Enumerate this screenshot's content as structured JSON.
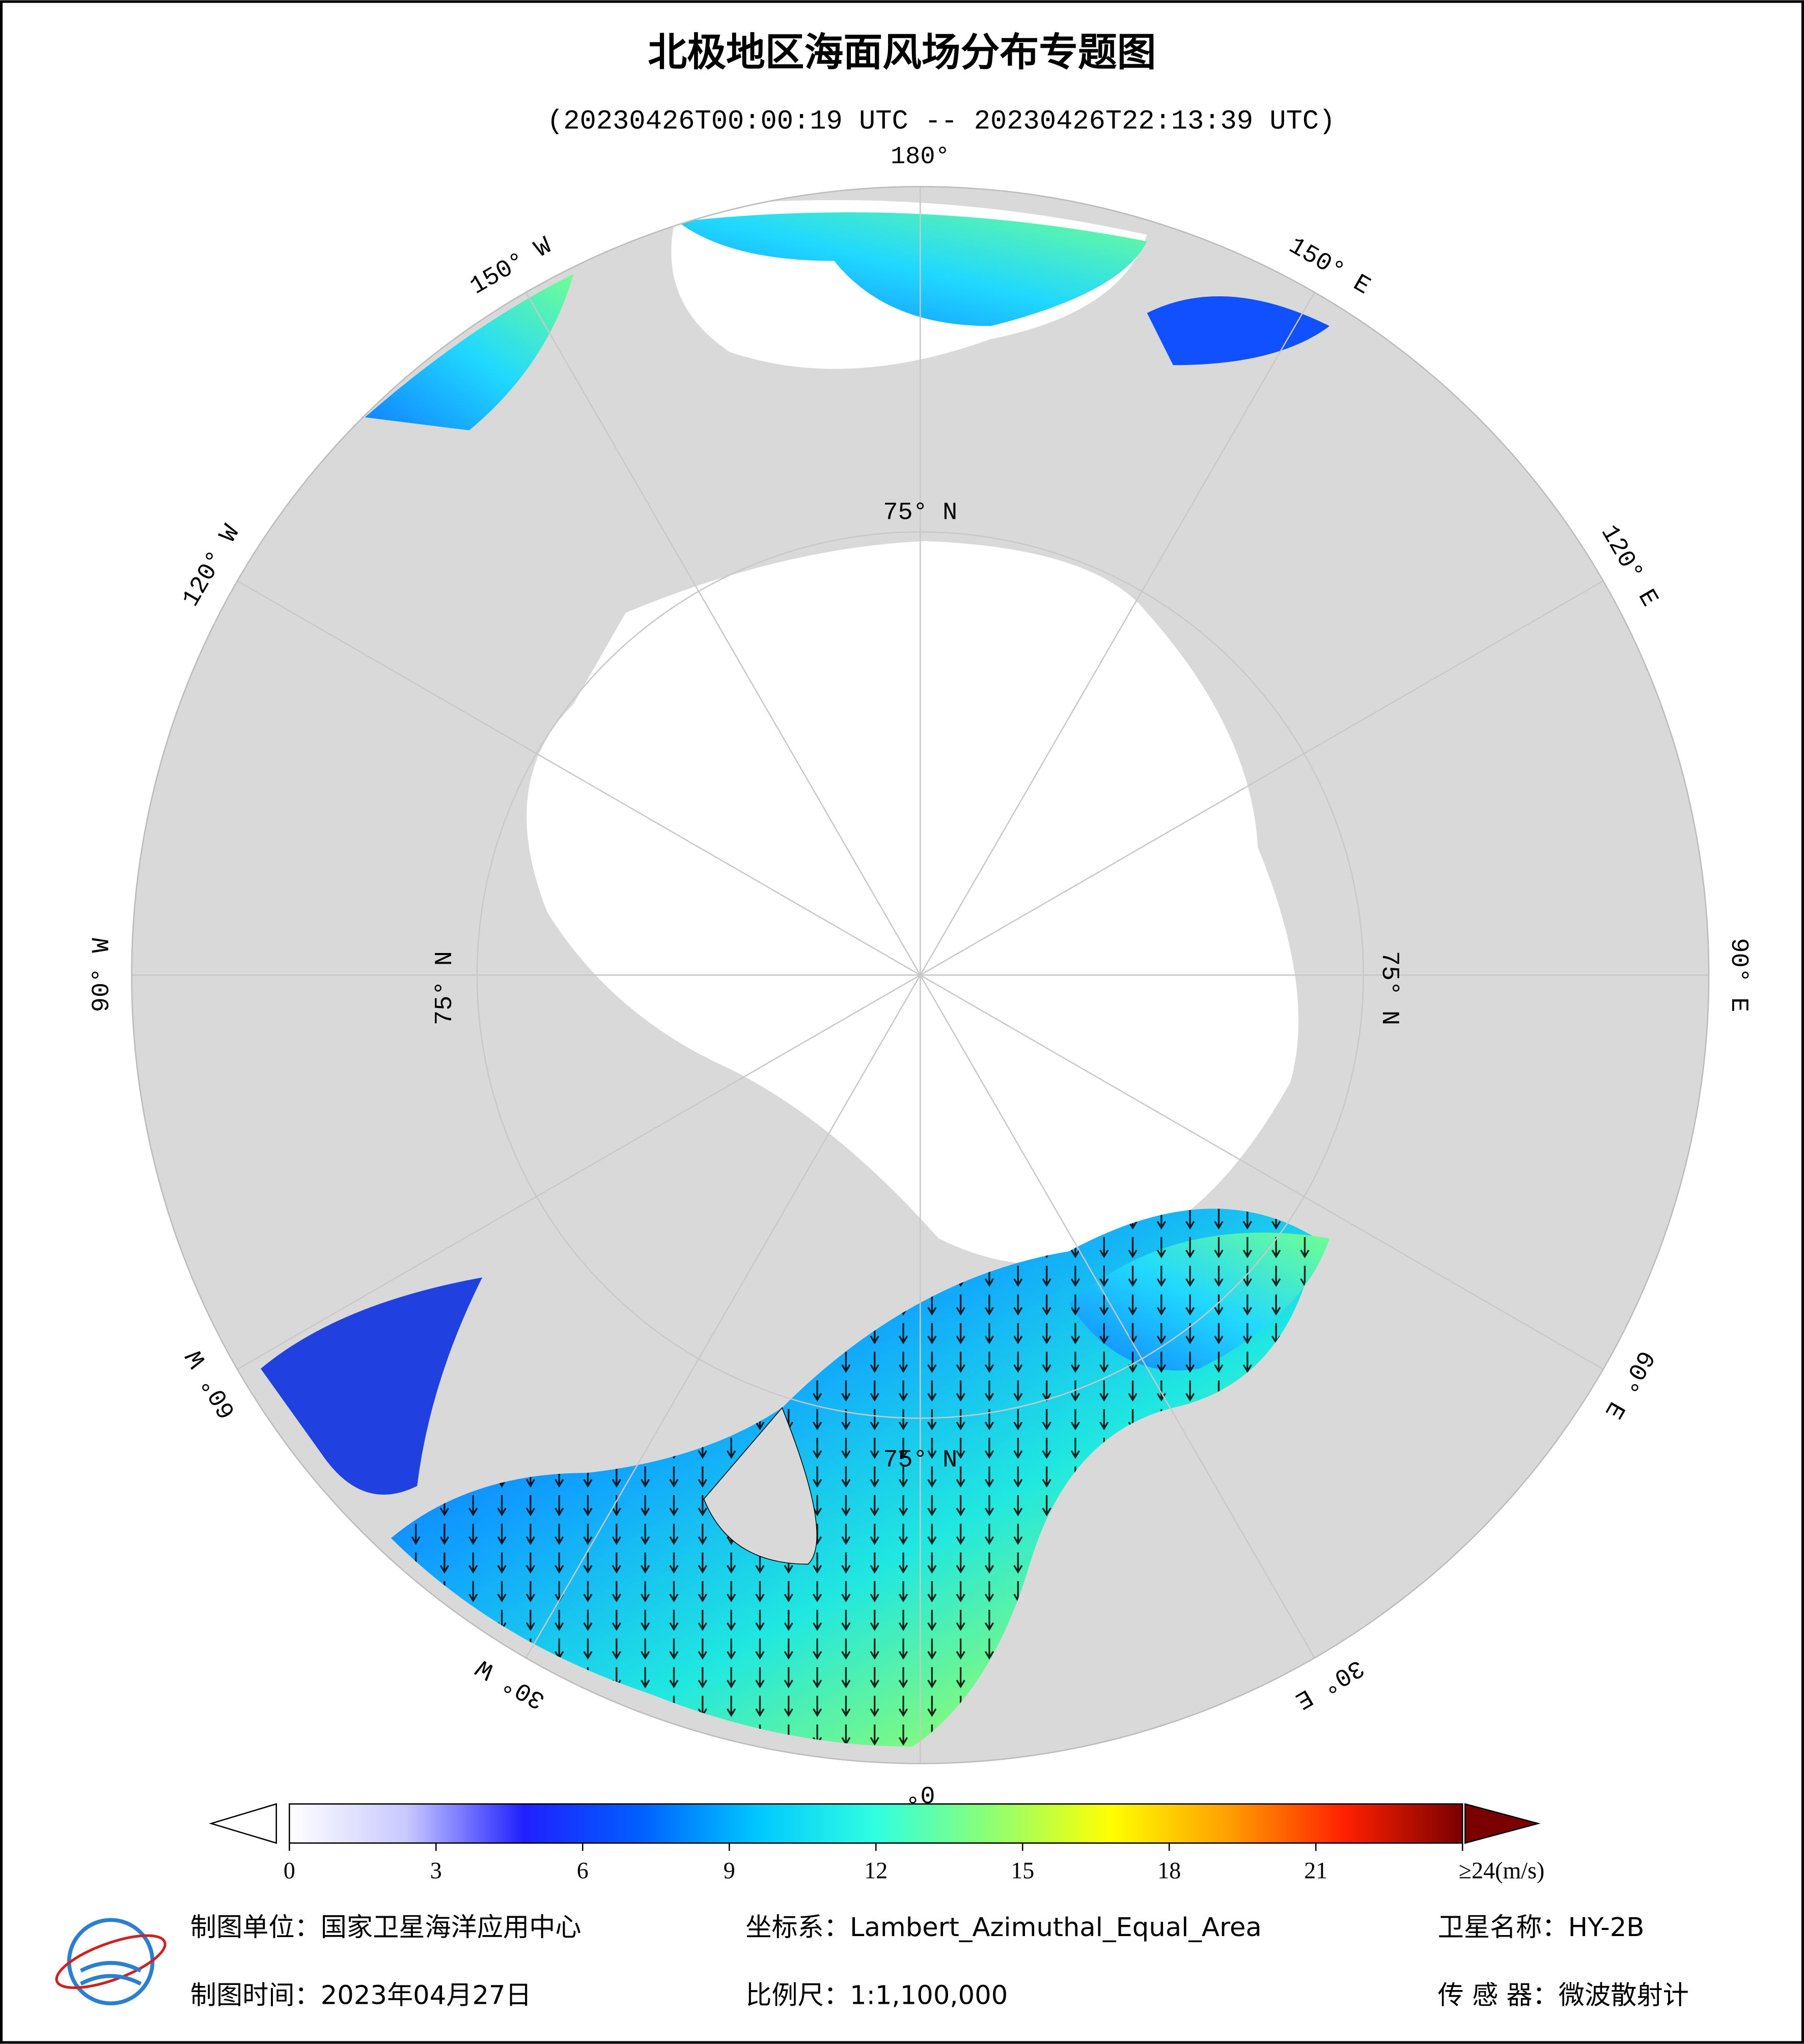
{
  "header": {
    "title": "北极地区海面风场分布专题图",
    "subtitle": "(20230426T00:00:19 UTC -- 20230426T22:13:39 UTC)"
  },
  "map": {
    "meridian_labels": [
      "180°",
      "150° W",
      "120° W",
      "90° W",
      "60° W",
      "30° W",
      "0°",
      "30° E",
      "60° E",
      "90° E",
      "120° E",
      "150° E"
    ],
    "parallel_labels": [
      "75° N",
      "75° N",
      "75° N",
      "75° N"
    ]
  },
  "colorbar": {
    "lim": [
      0,
      24
    ],
    "ticks": [
      0,
      3,
      6,
      9,
      12,
      15,
      18,
      21,
      {
        "value": 24,
        "label": "≥24(m/s)"
      }
    ],
    "colors": [
      "#ffffff",
      "#c8c8ff",
      "#2020ff",
      "#0060ff",
      "#00c8ff",
      "#30ffe0",
      "#90ff70",
      "#ffff00",
      "#ffa000",
      "#ff2000",
      "#7a0000"
    ]
  },
  "footer": {
    "unit": "制图单位：国家卫星海洋应用中心",
    "crs": "坐标系：Lambert_Azimuthal_Equal_Area",
    "satellite": "卫星名称：HY-2B",
    "date": "制图时间：2023年04月27日",
    "scale": "比例尺：1:1,100,000",
    "sensor": "传 感 器：微波散射计"
  }
}
